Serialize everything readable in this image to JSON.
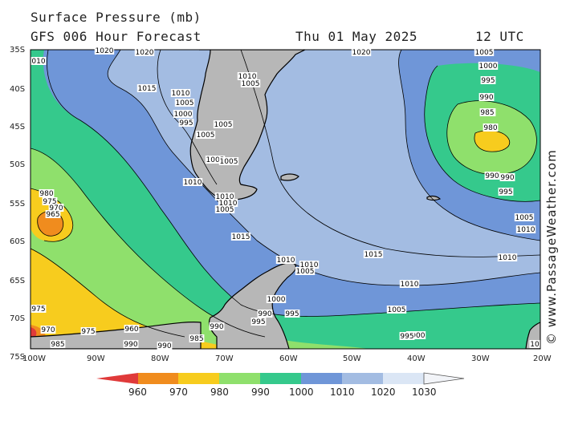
{
  "header": {
    "title": "Surface Pressure (mb)",
    "subtitle": "GFS 006 Hour Forecast",
    "datetime": "Thu 01 May 2025",
    "valid_hour": "12 UTC"
  },
  "credit": "© www.PassageWeather.com",
  "map": {
    "lat_ticks": [
      "35S",
      "40S",
      "45S",
      "50S",
      "55S",
      "60S",
      "65S",
      "70S",
      "75S"
    ],
    "lon_ticks": [
      "100W",
      "90W",
      "80W",
      "70W",
      "60W",
      "50W",
      "40W",
      "30W",
      "20W"
    ],
    "colors": {
      "lt960": "#e03a3a",
      "c960": "#f08c1e",
      "c970": "#f7cc1e",
      "c980": "#8fe06c",
      "c990": "#35c98c",
      "c1000": "#6f96d8",
      "c1010": "#a3bce2",
      "c1020": "#dbe6f5",
      "land": "#b7b7b7"
    },
    "isobar_labels": [
      {
        "text": "1020"
      },
      {
        "text": "1020"
      },
      {
        "text": "1020"
      },
      {
        "text": "1005"
      },
      {
        "text": "1010"
      },
      {
        "text": "1005"
      },
      {
        "text": "1015"
      },
      {
        "text": "1010"
      },
      {
        "text": "1005"
      },
      {
        "text": "1000"
      },
      {
        "text": "995"
      },
      {
        "text": "1005"
      },
      {
        "text": "1005"
      },
      {
        "text": "1005"
      },
      {
        "text": "1005"
      },
      {
        "text": "1010"
      },
      {
        "text": "1010"
      },
      {
        "text": "1010"
      },
      {
        "text": "1005"
      },
      {
        "text": "1015"
      },
      {
        "text": "1010"
      },
      {
        "text": "1010"
      },
      {
        "text": "1005"
      },
      {
        "text": "1000"
      },
      {
        "text": "995"
      },
      {
        "text": "990"
      },
      {
        "text": "990"
      },
      {
        "text": "995"
      },
      {
        "text": "1005"
      },
      {
        "text": "1000"
      },
      {
        "text": "995"
      },
      {
        "text": "990"
      },
      {
        "text": "985"
      },
      {
        "text": "980"
      },
      {
        "text": "990"
      },
      {
        "text": "995"
      },
      {
        "text": "1000"
      },
      {
        "text": "1005"
      },
      {
        "text": "1010"
      },
      {
        "text": "1010"
      },
      {
        "text": "1010"
      },
      {
        "text": "995"
      },
      {
        "text": "990"
      },
      {
        "text": "985"
      },
      {
        "text": "980"
      },
      {
        "text": "975"
      },
      {
        "text": "970"
      },
      {
        "text": "965"
      },
      {
        "text": "975"
      },
      {
        "text": "970"
      },
      {
        "text": "975"
      },
      {
        "text": "960"
      },
      {
        "text": "985"
      },
      {
        "text": "990"
      },
      {
        "text": "985"
      },
      {
        "text": "990"
      },
      {
        "text": "010"
      },
      {
        "text": "1015"
      },
      {
        "text": "10"
      }
    ]
  },
  "legend": {
    "labels": [
      "960",
      "970",
      "980",
      "990",
      "1000",
      "1010",
      "1020",
      "1030"
    ]
  }
}
